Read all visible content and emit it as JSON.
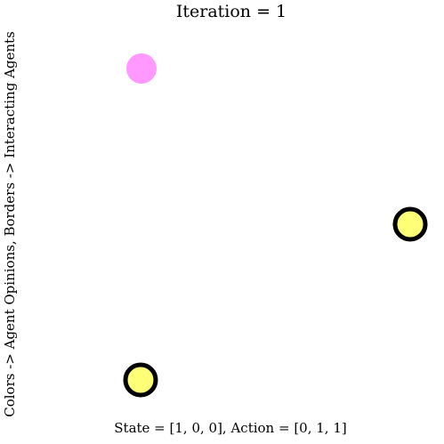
{
  "figure": {
    "title": "Iteration = 1",
    "ylabel": "Colors -> Agent Opinions, Borders -> Interacting Agents",
    "xlabel": "State = [1, 0, 0], Action = [0, 1, 1]"
  },
  "agents": [
    {
      "id": 1,
      "opinion_color": "#ff99ff",
      "interacting": false
    },
    {
      "id": 2,
      "opinion_color": "#ffff77",
      "interacting": true
    },
    {
      "id": 3,
      "opinion_color": "#ffff77",
      "interacting": true
    }
  ],
  "colors": {
    "background": "#ffffff",
    "border": "#000000"
  }
}
